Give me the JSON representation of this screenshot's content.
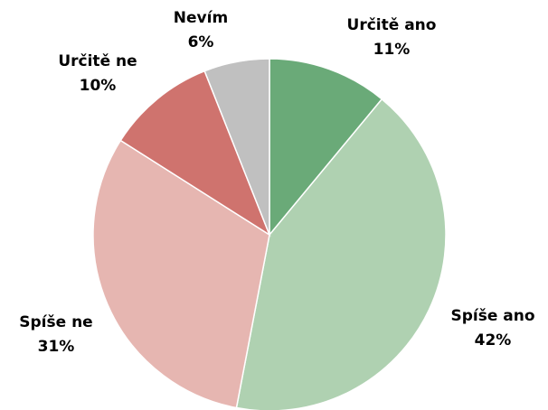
{
  "chart_data": {
    "type": "pie",
    "categories": [
      "Určitě ano",
      "Spíše ano",
      "Spíše ne",
      "Určitě ne",
      "Nevím"
    ],
    "values": [
      11,
      42,
      31,
      10,
      6
    ],
    "value_labels": [
      "11%",
      "42%",
      "31%",
      "10%",
      "6%"
    ],
    "colors": [
      "#6aaa78",
      "#afd1b1",
      "#e6b6b1",
      "#cf736e",
      "#c0c0c0"
    ]
  }
}
